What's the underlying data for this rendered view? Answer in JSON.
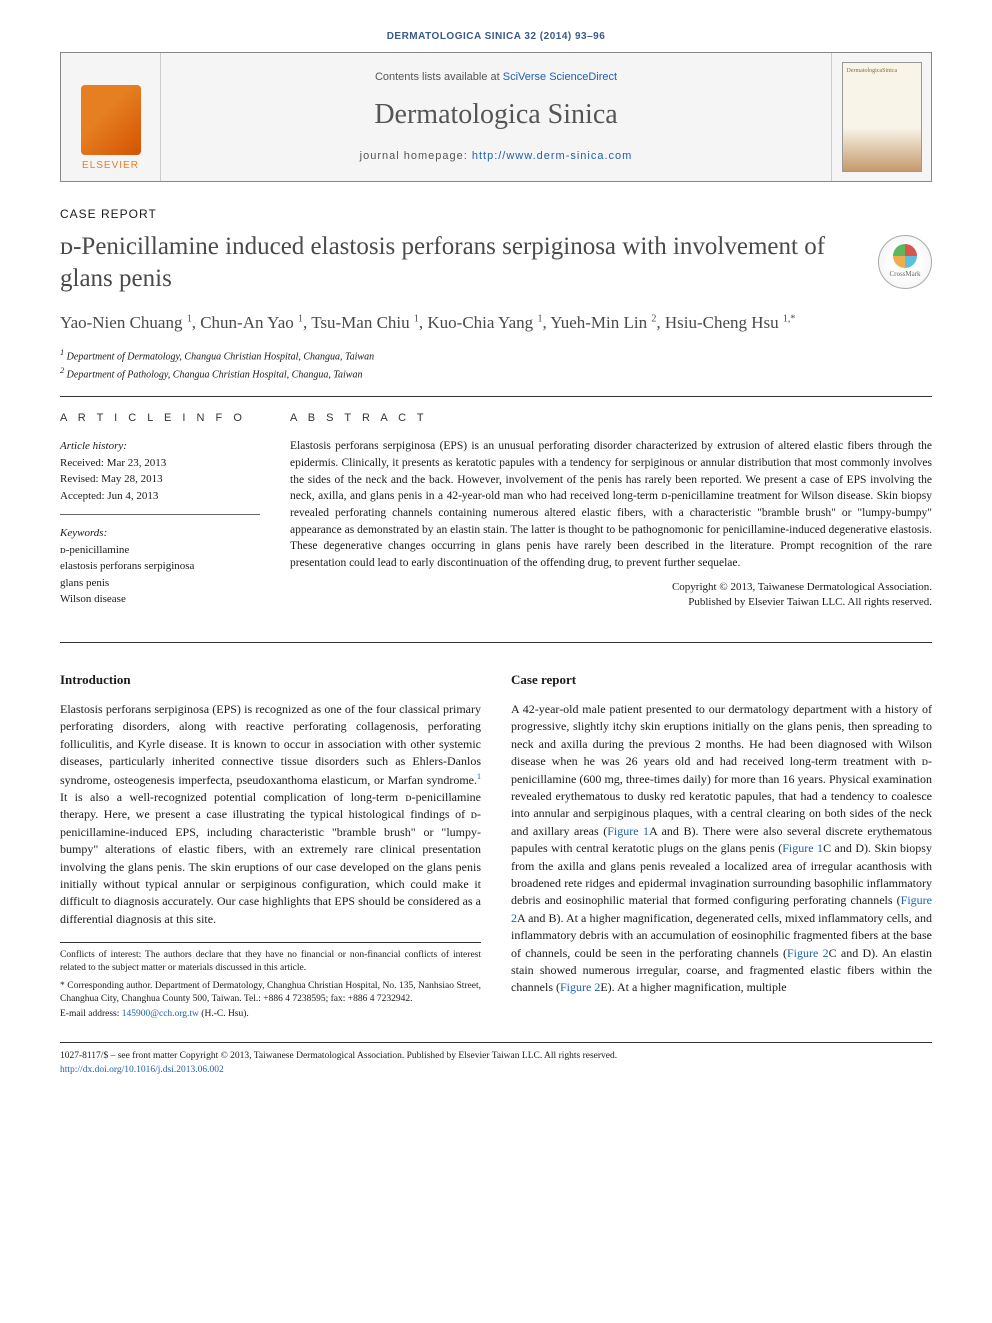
{
  "journal_ref": "DERMATOLOGICA SINICA 32 (2014) 93–96",
  "banner": {
    "contents_prefix": "Contents lists available at ",
    "contents_link": "SciVerse ScienceDirect",
    "journal_name": "Dermatologica Sinica",
    "homepage_prefix": "journal homepage: ",
    "homepage_url": "http://www.derm-sinica.com",
    "publisher": "ELSEVIER",
    "cover_label": "DermatologicaSinica"
  },
  "article": {
    "type": "CASE REPORT",
    "title": "ᴅ-Penicillamine induced elastosis perforans serpiginosa with involvement of glans penis",
    "crossmark": "CrossMark",
    "authors_html": "Yao-Nien Chuang <sup>1</sup>, Chun-An Yao <sup>1</sup>, Tsu-Man Chiu <sup>1</sup>, Kuo-Chia Yang <sup>1</sup>, Yueh-Min Lin <sup>2</sup>, Hsiu-Cheng Hsu <sup>1,*</sup>",
    "affiliations": [
      "1 Department of Dermatology, Changua Christian Hospital, Changua, Taiwan",
      "2 Department of Pathology, Changua Christian Hospital, Changua, Taiwan"
    ]
  },
  "info": {
    "heading": "A R T I C L E   I N F O",
    "history_label": "Article history:",
    "received": "Received: Mar 23, 2013",
    "revised": "Revised: May 28, 2013",
    "accepted": "Accepted: Jun 4, 2013",
    "keywords_label": "Keywords:",
    "keywords": [
      "ᴅ-penicillamine",
      "elastosis perforans serpiginosa",
      "glans penis",
      "Wilson disease"
    ]
  },
  "abstract": {
    "heading": "A B S T R A C T",
    "text": "Elastosis perforans serpiginosa (EPS) is an unusual perforating disorder characterized by extrusion of altered elastic fibers through the epidermis. Clinically, it presents as keratotic papules with a tendency for serpiginous or annular distribution that most commonly involves the sides of the neck and the back. However, involvement of the penis has rarely been reported. We present a case of EPS involving the neck, axilla, and glans penis in a 42-year-old man who had received long-term ᴅ-penicillamine treatment for Wilson disease. Skin biopsy revealed perforating channels containing numerous altered elastic fibers, with a characteristic \"bramble brush\" or \"lumpy-bumpy\" appearance as demonstrated by an elastin stain. The latter is thought to be pathognomonic for penicillamine-induced degenerative elastosis. These degenerative changes occurring in glans penis have rarely been described in the literature. Prompt recognition of the rare presentation could lead to early discontinuation of the offending drug, to prevent further sequelae.",
    "copyright1": "Copyright © 2013, Taiwanese Dermatological Association.",
    "copyright2": "Published by Elsevier Taiwan LLC. All rights reserved."
  },
  "introduction": {
    "heading": "Introduction",
    "text": "Elastosis perforans serpiginosa (EPS) is recognized as one of the four classical primary perforating disorders, along with reactive perforating collagenosis, perforating folliculitis, and Kyrle disease. It is known to occur in association with other systemic diseases, particularly inherited connective tissue disorders such as Ehlers-Danlos syndrome, osteogenesis imperfecta, pseudoxanthoma elasticum, or Marfan syndrome.<sup>1</sup> It is also a well-recognized potential complication of long-term ᴅ-penicillamine therapy. Here, we present a case illustrating the typical histological findings of ᴅ-penicillamine-induced EPS, including characteristic \"bramble brush\" or \"lumpy-bumpy\" alterations of elastic fibers, with an extremely rare clinical presentation involving the glans penis. The skin eruptions of our case developed on the glans penis initially without typical annular or serpiginous configuration, which could make it difficult to diagnosis accurately. Our case highlights that EPS should be considered as a differential diagnosis at this site."
  },
  "case_report": {
    "heading": "Case report",
    "text": "A 42-year-old male patient presented to our dermatology department with a history of progressive, slightly itchy skin eruptions initially on the glans penis, then spreading to neck and axilla during the previous 2 months. He had been diagnosed with Wilson disease when he was 26 years old and had received long-term treatment with ᴅ-penicillamine (600 mg, three-times daily) for more than 16 years. Physical examination revealed erythematous to dusky red keratotic papules, that had a tendency to coalesce into annular and serpiginous plaques, with a central clearing on both sides of the neck and axillary areas (<span class=\"fig-ref\">Figure 1</span>A and B). There were also several discrete erythematous papules with central keratotic plugs on the glans penis (<span class=\"fig-ref\">Figure 1</span>C and D). Skin biopsy from the axilla and glans penis revealed a localized area of irregular acanthosis with broadened rete ridges and epidermal invagination surrounding basophilic inflammatory debris and eosinophilic material that formed configuring perforating channels (<span class=\"fig-ref\">Figure 2</span>A and B). At a higher magnification, degenerated cells, mixed inflammatory cells, and inflammatory debris with an accumulation of eosinophilic fragmented fibers at the base of channels, could be seen in the perforating channels (<span class=\"fig-ref\">Figure 2</span>C and D). An elastin stain showed numerous irregular, coarse, and fragmented elastic fibers within the channels (<span class=\"fig-ref\">Figure 2</span>E). At a higher magnification, multiple"
  },
  "footnotes": {
    "conflicts": "Conflicts of interest: The authors declare that they have no financial or non-financial conflicts of interest related to the subject matter or materials discussed in this article.",
    "corresponding": "* Corresponding author. Department of Dermatology, Changhua Christian Hospital, No. 135, Nanhsiao Street, Changhua City, Changhua County 500, Taiwan. Tel.: +886 4 7238595; fax: +886 4 7232942.",
    "email_label": "E-mail address: ",
    "email": "145900@cch.org.tw",
    "email_suffix": " (H.-C. Hsu)."
  },
  "footer": {
    "issn_line": "1027-8117/$ – see front matter Copyright © 2013, Taiwanese Dermatological Association. Published by Elsevier Taiwan LLC. All rights reserved.",
    "doi": "http://dx.doi.org/10.1016/j.dsi.2013.06.002"
  },
  "colors": {
    "link": "#2060b0",
    "header_blue": "#3a5a8a",
    "title_gray": "#4a4a4a",
    "elsevier_orange": "#e67e22",
    "border": "#333333"
  }
}
